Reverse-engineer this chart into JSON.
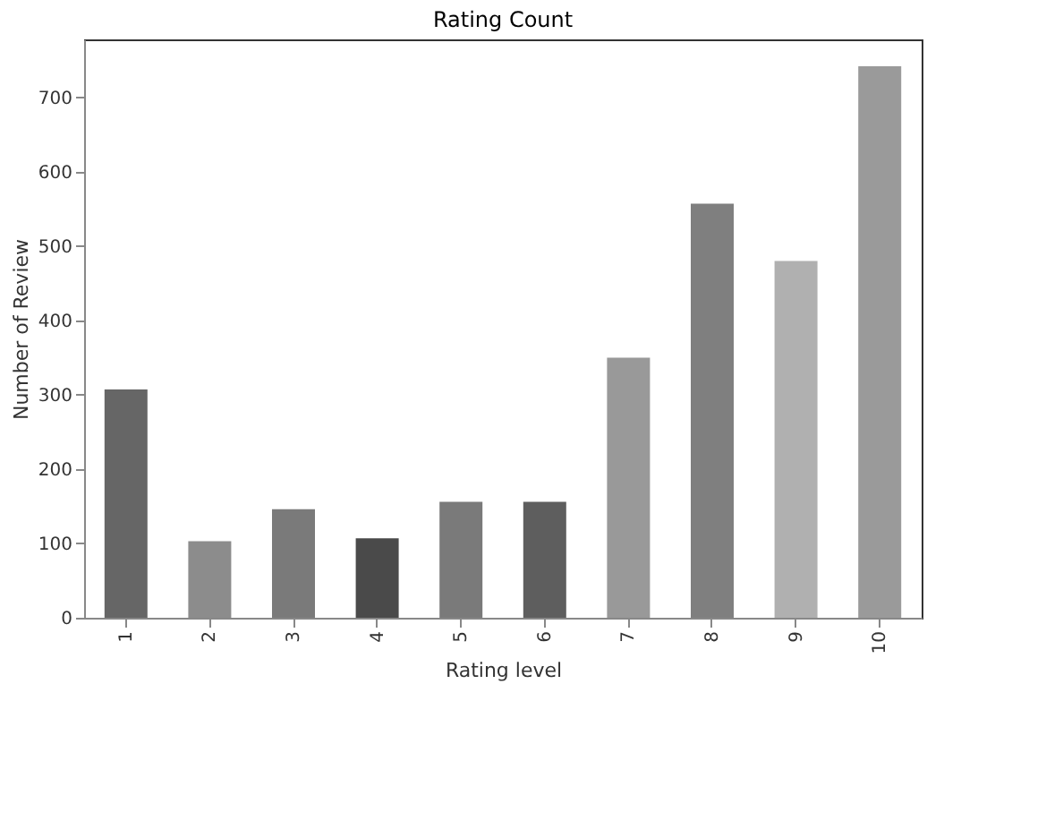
{
  "chart_data": {
    "type": "bar",
    "title": "Rating Count",
    "xlabel": "Rating level",
    "ylabel": "Number of Review",
    "categories": [
      "1",
      "2",
      "3",
      "4",
      "5",
      "6",
      "7",
      "8",
      "9",
      "10"
    ],
    "values": [
      307,
      103,
      146,
      107,
      156,
      156,
      350,
      557,
      480,
      742
    ],
    "colors": [
      "#666666",
      "#8c8c8c",
      "#7a7a7a",
      "#4a4a4a",
      "#7a7a7a",
      "#5e5e5e",
      "#999999",
      "#7f7f7f",
      "#b0b0b0",
      "#9a9a9a"
    ],
    "ylim": [
      0,
      778
    ],
    "yticks": [
      0,
      100,
      200,
      300,
      400,
      500,
      600,
      700
    ],
    "grid": false
  }
}
